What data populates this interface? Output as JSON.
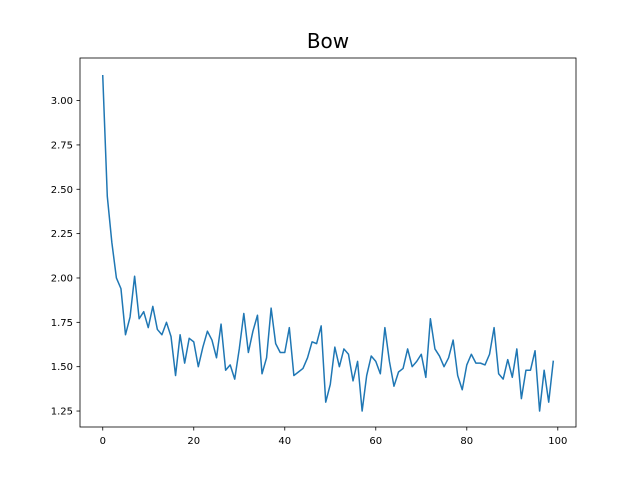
{
  "chart_data": {
    "type": "line",
    "title": "Bow",
    "xlabel": "",
    "ylabel": "",
    "xlim": [
      -5,
      104
    ],
    "ylim": [
      1.16,
      3.24
    ],
    "xticks": [
      0,
      20,
      40,
      60,
      80,
      100
    ],
    "xtick_labels": [
      "0",
      "20",
      "40",
      "60",
      "80",
      "100"
    ],
    "yticks": [
      1.25,
      1.5,
      1.75,
      2.0,
      2.25,
      2.5,
      2.75,
      3.0
    ],
    "ytick_labels": [
      "1.25",
      "1.50",
      "1.75",
      "2.00",
      "2.25",
      "2.50",
      "2.75",
      "3.00"
    ],
    "grid": false,
    "series": [
      {
        "color": "#1f77b4",
        "x": [
          0,
          1,
          2,
          3,
          4,
          5,
          6,
          7,
          8,
          9,
          10,
          11,
          12,
          13,
          14,
          15,
          16,
          17,
          18,
          19,
          20,
          21,
          22,
          23,
          24,
          25,
          26,
          27,
          28,
          29,
          30,
          31,
          32,
          33,
          34,
          35,
          36,
          37,
          38,
          39,
          40,
          41,
          42,
          43,
          44,
          45,
          46,
          47,
          48,
          49,
          50,
          51,
          52,
          53,
          54,
          55,
          56,
          57,
          58,
          59,
          60,
          61,
          62,
          63,
          64,
          65,
          66,
          67,
          68,
          69,
          70,
          71,
          72,
          73,
          74,
          75,
          76,
          77,
          78,
          79,
          80,
          81,
          82,
          83,
          84,
          85,
          86,
          87,
          88,
          89,
          90,
          91,
          92,
          93,
          94,
          95,
          96,
          97,
          98,
          99
        ],
        "y": [
          3.14,
          2.46,
          2.2,
          2.0,
          1.94,
          1.68,
          1.78,
          2.01,
          1.77,
          1.81,
          1.72,
          1.84,
          1.71,
          1.68,
          1.75,
          1.67,
          1.45,
          1.68,
          1.52,
          1.66,
          1.64,
          1.5,
          1.61,
          1.7,
          1.65,
          1.55,
          1.74,
          1.48,
          1.51,
          1.43,
          1.6,
          1.8,
          1.58,
          1.7,
          1.79,
          1.46,
          1.55,
          1.83,
          1.63,
          1.58,
          1.58,
          1.72,
          1.45,
          1.47,
          1.49,
          1.55,
          1.64,
          1.63,
          1.73,
          1.3,
          1.4,
          1.61,
          1.5,
          1.6,
          1.57,
          1.42,
          1.53,
          1.25,
          1.45,
          1.56,
          1.53,
          1.46,
          1.72,
          1.53,
          1.39,
          1.47,
          1.49,
          1.6,
          1.5,
          1.53,
          1.57,
          1.44,
          1.77,
          1.6,
          1.56,
          1.5,
          1.55,
          1.65,
          1.45,
          1.37,
          1.51,
          1.57,
          1.52,
          1.52,
          1.51,
          1.57,
          1.72,
          1.46,
          1.43,
          1.54,
          1.44,
          1.6,
          1.32,
          1.48,
          1.48,
          1.59,
          1.25,
          1.48,
          1.3,
          1.53
        ]
      }
    ]
  }
}
